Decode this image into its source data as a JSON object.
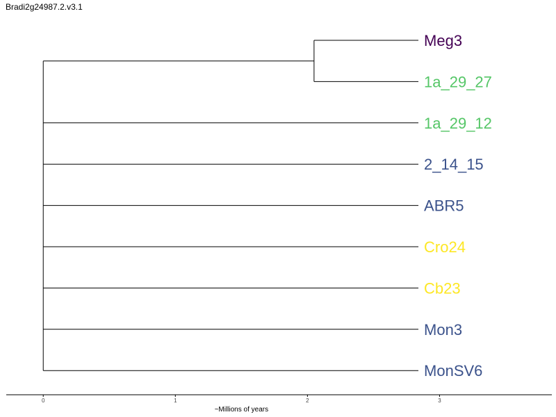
{
  "title": "Bradi2g24987.2.v3.1",
  "axis": {
    "label": "~Millions of years",
    "ticks": [
      "0",
      "1",
      "2",
      "3"
    ],
    "range": [
      -0.28,
      3.85
    ]
  },
  "colors": {
    "purple": "#440154",
    "green": "#55c667",
    "blue": "#3b528b",
    "yellow": "#fde725",
    "branch": "#000000"
  },
  "tree": {
    "root_age": 0,
    "tip_age": 2.84,
    "clade_node_age": 2.05,
    "tips": [
      {
        "name": "Meg3",
        "color": "#440154",
        "in_clade": true
      },
      {
        "name": "1a_29_27",
        "color": "#55c667",
        "in_clade": true
      },
      {
        "name": "1a_29_12",
        "color": "#55c667",
        "in_clade": false
      },
      {
        "name": "2_14_15",
        "color": "#3b528b",
        "in_clade": false
      },
      {
        "name": "ABR5",
        "color": "#3b528b",
        "in_clade": false
      },
      {
        "name": "Cro24",
        "color": "#fde725",
        "in_clade": false
      },
      {
        "name": "Cb23",
        "color": "#fde725",
        "in_clade": false
      },
      {
        "name": "Mon3",
        "color": "#3b528b",
        "in_clade": false
      },
      {
        "name": "MonSV6",
        "color": "#3b528b",
        "in_clade": false
      }
    ]
  }
}
